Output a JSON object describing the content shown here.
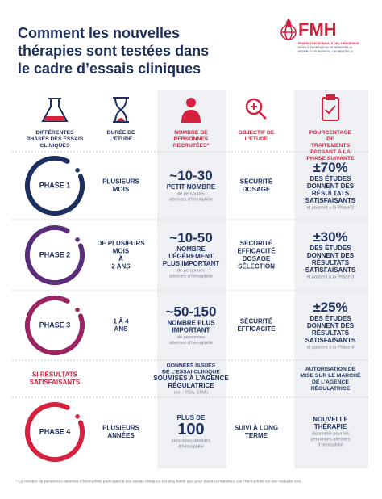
{
  "header": {
    "title": [
      "Comment les nouvelles",
      "thérapies sont testées dans",
      "le cadre d’essais cliniques"
    ],
    "logo": {
      "name": "FMH",
      "lines": [
        "FÉDÉRATION MONDIALE DE L’HÉMOPHILIE",
        "WORLD FEDERATION OF HEMOPHILIA",
        "FEDERACIÓN MUNDIAL DE HEMOFILIA"
      ]
    }
  },
  "columns": [
    [
      "DIFFÉRENTES",
      "PHASES DES ESSAIS",
      "CLINIQUES"
    ],
    [
      "DURÉE DE",
      "L’ÉTUDE"
    ],
    [
      "NOMBRE DE",
      "PERSONNES",
      "RECRUTÉES*"
    ],
    [
      "OBJECTIF DE",
      "L’ÉTUDE"
    ],
    [
      "POURCENTAGE",
      "DE",
      "TRAITEMENTS",
      "PASSANT À LA",
      "PHASE SUIVANTE"
    ]
  ],
  "rows": [
    {
      "phase": "PHASE 1",
      "duration": [
        "PLUSIEURS",
        "MOIS"
      ],
      "participants": {
        "count": "~10-30",
        "desc": [
          "PETIT NOMBRE"
        ],
        "note": [
          "de personnes",
          "atteintes d’hémophilie"
        ]
      },
      "objective": [
        "SÉCURITÉ",
        "DOSAGE"
      ],
      "progression": {
        "percent": "±70%",
        "result": [
          "DES ÉTUDES",
          "DONNENT DES",
          "RÉSULTATS",
          "SATISFAISANTS"
        ],
        "note": [
          "et passent à la Phase 2"
        ]
      }
    },
    {
      "phase": "PHASE 2",
      "duration": [
        "DE PLUSIEURS",
        "MOIS",
        "À",
        "2 ANS"
      ],
      "participants": {
        "count": "~10-50",
        "desc": [
          "NOMBRE",
          "LÉGÈREMENT",
          "PLUS IMPORTANT"
        ],
        "note": [
          "de personnes",
          "atteintes d’hémophilie"
        ]
      },
      "objective": [
        "SÉCURITÉ",
        "EFFICACITÉ",
        "DOSAGE",
        "SÉLECTION"
      ],
      "progression": {
        "percent": "±30%",
        "result": [
          "DES ÉTUDES",
          "DONNENT DES",
          "RÉSULTATS",
          "SATISFAISANTS"
        ],
        "note": [
          "et passent à la Phase 3"
        ]
      }
    },
    {
      "phase": "PHASE 3",
      "duration": [
        "1 À 4",
        "ANS"
      ],
      "participants": {
        "count": "~50-150",
        "desc": [
          "NOMBRE PLUS",
          "IMPORTANT"
        ],
        "note": [
          "de personnes",
          "atteintes d’hémophilie"
        ]
      },
      "objective": [
        "SÉCURITÉ",
        "EFFICACITÉ"
      ],
      "progression": {
        "percent": "±25%",
        "result": [
          "DES ÉTUDES",
          "DONNENT DES",
          "RÉSULTATS",
          "SATISFAISANTS"
        ],
        "note": [
          "et passent à la Phase 4"
        ]
      }
    },
    {
      "phase": "PHASE 4",
      "duration": [
        "PLUSIEURS",
        "ANNÉES"
      ],
      "participants": {
        "prefix": [
          "PLUS DE"
        ],
        "count": "100",
        "note": [
          "personnes atteintes",
          "d’hémophilie"
        ]
      },
      "objective": [
        "SUIVI À LONG",
        "TERME"
      ],
      "progression": {
        "result": [
          "NOUVELLE",
          "THÉRAPIE"
        ],
        "note": [
          "disponible pour les",
          "personnes atteintes",
          "d’hémophilie"
        ]
      }
    }
  ],
  "regulatory": {
    "condition": [
      "SI RÉSULTATS",
      "SATISFAISANTS"
    ],
    "submission": {
      "lines": [
        "DONNÉES ISSUES",
        "DE L’ESSAI CLINIQUE"
      ],
      "emphasis": [
        "SOUMISES À L’AGENCE",
        "RÉGULATRICE"
      ],
      "example": [
        "(ex. : FDA, EMA)"
      ]
    },
    "approval": [
      "AUTORISATION DE",
      "MISE SUR LE MARCHÉ",
      "DE L’AGENCE",
      "RÉGULATRICE"
    ]
  },
  "footnote": "* Le nombre de personnes atteintes d’hémophilie participant à des essais cliniques est plus faible que pour d’autres maladies, car l’hémophilie est une maladie rare."
}
